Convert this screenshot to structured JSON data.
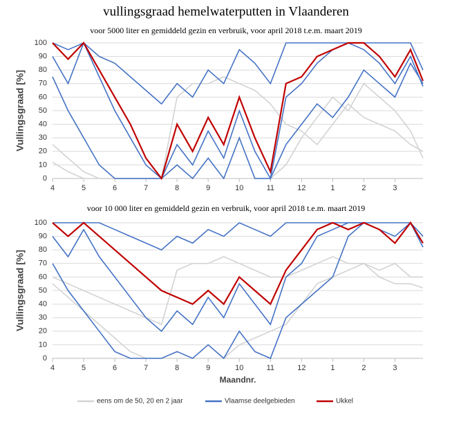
{
  "chart_data": [
    {
      "type": "line",
      "title": "vullingsgraad hemelwaterputten in Vlaanderen",
      "subtitle": "voor 5000 liter en gemiddeld gezin en verbruik, voor april 2018 t.e.m. maart 2019",
      "ylabel": "Vullingsgraad [%]",
      "x": [
        0,
        0.5,
        1,
        1.5,
        2,
        2.5,
        3,
        3.5,
        4,
        4.5,
        5,
        5.5,
        6,
        6.5,
        7,
        7.5,
        8,
        8.5,
        9,
        9.5,
        10,
        10.5,
        11,
        11.5,
        11.9
      ],
      "xlim": [
        0,
        11.9
      ],
      "xticks": [
        {
          "value": 0,
          "label": "4"
        },
        {
          "value": 1,
          "label": "5"
        },
        {
          "value": 2,
          "label": "6"
        },
        {
          "value": 3,
          "label": "7"
        },
        {
          "value": 4,
          "label": "8"
        },
        {
          "value": 5,
          "label": "9"
        },
        {
          "value": 6,
          "label": "10"
        },
        {
          "value": 7,
          "label": "11"
        },
        {
          "value": 8,
          "label": "12"
        },
        {
          "value": 9,
          "label": "1"
        },
        {
          "value": 10,
          "label": "2"
        },
        {
          "value": 11,
          "label": "3"
        }
      ],
      "ylim": [
        0,
        100
      ],
      "yticks": [
        0,
        10,
        20,
        30,
        40,
        50,
        60,
        70,
        80,
        90,
        100
      ],
      "grid": true,
      "series": [
        {
          "name": "eens om de 50, 20 en 2 jaar",
          "color": "#d3d3d3",
          "lines": [
            [
              25,
              15,
              5,
              0,
              0,
              0,
              0,
              0,
              60,
              70,
              70,
              75,
              70,
              65,
              55,
              40,
              35,
              25,
              40,
              55,
              45,
              40,
              35,
              25,
              20
            ],
            [
              12,
              5,
              0,
              0,
              0,
              0,
              0,
              0,
              0,
              0,
              0,
              0,
              0,
              0,
              0,
              10,
              30,
              45,
              60,
              50,
              70,
              60,
              50,
              35,
              15
            ]
          ]
        },
        {
          "name": "Vlaamse deelgebieden",
          "color": "#4472c4",
          "lines": [
            [
              100,
              95,
              100,
              90,
              85,
              75,
              65,
              55,
              70,
              60,
              80,
              70,
              95,
              85,
              70,
              100,
              100,
              100,
              100,
              100,
              100,
              100,
              100,
              100,
              80
            ],
            [
              90,
              70,
              100,
              75,
              50,
              30,
              10,
              0,
              25,
              10,
              35,
              15,
              50,
              20,
              0,
              60,
              70,
              85,
              95,
              100,
              95,
              85,
              70,
              90,
              68
            ],
            [
              75,
              50,
              30,
              10,
              0,
              0,
              0,
              0,
              10,
              0,
              15,
              0,
              30,
              0,
              0,
              25,
              40,
              55,
              45,
              60,
              80,
              70,
              60,
              85,
              70
            ]
          ]
        },
        {
          "name": "Ukkel",
          "color": "#c00000",
          "lines": [
            [
              100,
              88,
              100,
              80,
              60,
              40,
              15,
              0,
              40,
              20,
              45,
              25,
              60,
              30,
              5,
              70,
              75,
              90,
              95,
              100,
              100,
              90,
              75,
              95,
              72
            ]
          ]
        }
      ]
    },
    {
      "type": "line",
      "subtitle": "voor 10 000 liter en gemiddeld gezin en verbruik, voor april 2018 t.e.m. maart 2019",
      "ylabel": "Vullingsgraad [%]",
      "xlabel": "Maandnr.",
      "x": [
        0,
        0.5,
        1,
        1.5,
        2,
        2.5,
        3,
        3.5,
        4,
        4.5,
        5,
        5.5,
        6,
        6.5,
        7,
        7.5,
        8,
        8.5,
        9,
        9.5,
        10,
        10.5,
        11,
        11.5,
        11.9
      ],
      "xlim": [
        0,
        11.9
      ],
      "xticks": [
        {
          "value": 0,
          "label": "4"
        },
        {
          "value": 1,
          "label": "5"
        },
        {
          "value": 2,
          "label": "6"
        },
        {
          "value": 3,
          "label": "7"
        },
        {
          "value": 4,
          "label": "8"
        },
        {
          "value": 5,
          "label": "9"
        },
        {
          "value": 6,
          "label": "10"
        },
        {
          "value": 7,
          "label": "11"
        },
        {
          "value": 8,
          "label": "12"
        },
        {
          "value": 9,
          "label": "1"
        },
        {
          "value": 10,
          "label": "2"
        },
        {
          "value": 11,
          "label": "3"
        }
      ],
      "ylim": [
        0,
        100
      ],
      "yticks": [
        0,
        10,
        20,
        30,
        40,
        50,
        60,
        70,
        80,
        90,
        100
      ],
      "grid": true,
      "series": [
        {
          "color": "#d3d3d3",
          "lines": [
            [
              60,
              55,
              50,
              45,
              40,
              35,
              30,
              25,
              65,
              70,
              70,
              75,
              70,
              65,
              60,
              60,
              65,
              70,
              75,
              70,
              70,
              65,
              70,
              60,
              60
            ],
            [
              55,
              45,
              35,
              25,
              15,
              5,
              0,
              0,
              0,
              0,
              0,
              0,
              10,
              15,
              20,
              25,
              40,
              55,
              60,
              65,
              70,
              60,
              55,
              55,
              52
            ]
          ]
        },
        {
          "color": "#4472c4",
          "lines": [
            [
              100,
              100,
              100,
              100,
              95,
              90,
              85,
              80,
              90,
              85,
              95,
              90,
              100,
              95,
              90,
              100,
              100,
              100,
              100,
              100,
              100,
              100,
              100,
              100,
              90
            ],
            [
              90,
              75,
              95,
              75,
              60,
              45,
              30,
              20,
              35,
              25,
              45,
              30,
              55,
              40,
              25,
              60,
              70,
              90,
              95,
              100,
              100,
              95,
              85,
              100,
              82
            ],
            [
              70,
              50,
              35,
              20,
              5,
              0,
              0,
              0,
              5,
              0,
              10,
              0,
              20,
              5,
              0,
              30,
              40,
              50,
              60,
              90,
              100,
              95,
              90,
              100,
              85
            ]
          ]
        },
        {
          "color": "#c00000",
          "lines": [
            [
              100,
              90,
              100,
              90,
              80,
              70,
              60,
              50,
              45,
              40,
              50,
              40,
              60,
              50,
              40,
              65,
              80,
              95,
              100,
              95,
              100,
              95,
              85,
              100,
              85
            ]
          ]
        }
      ]
    }
  ]
}
